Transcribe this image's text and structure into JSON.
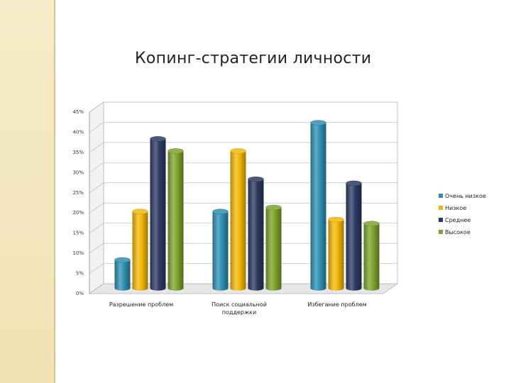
{
  "slide": {
    "title": "Копинг-стратегии личности"
  },
  "chart_data": {
    "type": "bar",
    "title": "",
    "xlabel": "",
    "ylabel": "",
    "categories": [
      "Разрешение проблем",
      "Поиск социальной поддержки",
      "Избегание проблем"
    ],
    "category_lines": [
      [
        "Разрешение проблем"
      ],
      [
        "Поиск социальной",
        "поддержки"
      ],
      [
        "Избегание проблем"
      ]
    ],
    "series": [
      {
        "name": "Очень низкое",
        "values": [
          7,
          19,
          41
        ],
        "color": "#2e8fb3"
      },
      {
        "name": "Низкое",
        "values": [
          19,
          34,
          17
        ],
        "color": "#f2b705"
      },
      {
        "name": "Среднее",
        "values": [
          37,
          27,
          26
        ],
        "color": "#2b3a63"
      },
      {
        "name": "Высокое",
        "values": [
          34,
          20,
          16
        ],
        "color": "#7ea32b"
      }
    ],
    "ylim": [
      0,
      45
    ],
    "yticks": [
      0,
      5,
      10,
      15,
      20,
      25,
      30,
      35,
      40,
      45
    ],
    "ytick_labels": [
      "0%",
      "5%",
      "10%",
      "15%",
      "20%",
      "25%",
      "30%",
      "35%",
      "40%",
      "45%"
    ],
    "grid": true,
    "legend_position": "right",
    "style": "3d-cylinder"
  }
}
